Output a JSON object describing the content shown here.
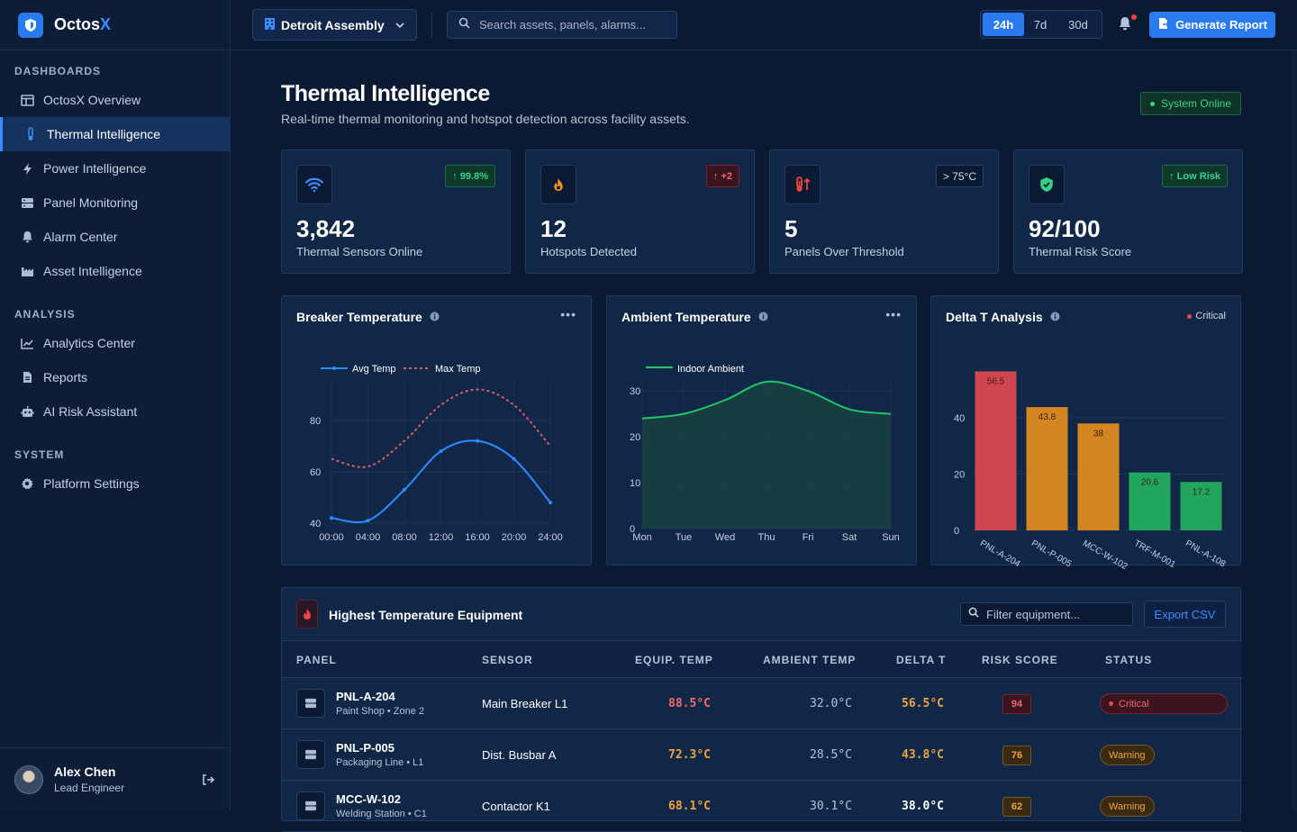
{
  "app": {
    "name_prefix": "Octos",
    "name_suffix": "X"
  },
  "sidebar": {
    "sections": [
      {
        "title": "DASHBOARDS",
        "items": [
          {
            "label": "OctosX Overview",
            "icon": "layout-icon",
            "active": false
          },
          {
            "label": "Thermal Intelligence",
            "icon": "thermometer-icon",
            "active": true
          },
          {
            "label": "Power Intelligence",
            "icon": "bolt-icon",
            "active": false
          },
          {
            "label": "Panel Monitoring",
            "icon": "server-icon",
            "active": false
          },
          {
            "label": "Alarm Center",
            "icon": "bell-icon",
            "active": false
          },
          {
            "label": "Asset Intelligence",
            "icon": "factory-icon",
            "active": false
          }
        ]
      },
      {
        "title": "ANALYSIS",
        "items": [
          {
            "label": "Analytics Center",
            "icon": "line-chart-icon",
            "active": false
          },
          {
            "label": "Reports",
            "icon": "file-icon",
            "active": false
          },
          {
            "label": "AI Risk Assistant",
            "icon": "robot-icon",
            "active": false
          }
        ]
      },
      {
        "title": "SYSTEM",
        "items": [
          {
            "label": "Platform Settings",
            "icon": "gear-icon",
            "active": false
          }
        ]
      }
    ],
    "user": {
      "name": "Alex Chen",
      "role": "Lead Engineer"
    }
  },
  "topbar": {
    "site": "Detroit Assembly",
    "search_placeholder": "Search assets, panels, alarms...",
    "ranges": [
      "24h",
      "7d",
      "30d"
    ],
    "active_range": "24h",
    "generate_label": "Generate Report"
  },
  "page": {
    "title": "Thermal Intelligence",
    "subtitle": "Real-time thermal monitoring and hotspot detection across facility assets.",
    "status": "System Online"
  },
  "kpis": [
    {
      "value": "3,842",
      "label": "Thermal Sensors Online",
      "badge": "99.8%",
      "badge_arrow": "↑",
      "tone": "green",
      "icon": "wifi-icon",
      "icon_color": "#3b8cff"
    },
    {
      "value": "12",
      "label": "Hotspots Detected",
      "badge": "+2",
      "badge_arrow": "↑",
      "tone": "red",
      "icon": "flame-icon",
      "icon_color": "#f5921e"
    },
    {
      "value": "5",
      "label": "Panels Over Threshold",
      "badge": "> 75°C",
      "badge_arrow": "",
      "tone": "gray",
      "icon": "temperature-up-icon",
      "icon_color": "#ef4444"
    },
    {
      "value": "92/100",
      "label": "Thermal Risk Score",
      "badge": "Low Risk",
      "badge_arrow": "↑",
      "tone": "green",
      "icon": "shield-icon",
      "icon_color": "#37d18a"
    }
  ],
  "charts": {
    "breaker": {
      "title": "Breaker Temperature"
    },
    "ambient": {
      "title": "Ambient Temperature"
    },
    "delta": {
      "title": "Delta T Analysis",
      "badge": "Critical"
    }
  },
  "chart_data": [
    {
      "type": "line",
      "title": "Breaker Temperature",
      "x": [
        "00:00",
        "04:00",
        "08:00",
        "12:00",
        "16:00",
        "20:00",
        "24:00"
      ],
      "series": [
        {
          "name": "Avg Temp",
          "values": [
            42,
            41,
            53,
            68,
            72,
            65,
            48
          ],
          "color": "#2b8cff",
          "dashed": false
        },
        {
          "name": "Max Temp",
          "values": [
            65,
            62,
            72,
            86,
            92,
            86,
            70
          ],
          "color": "#e05a63",
          "dashed": true
        }
      ],
      "yticks": [
        40,
        60,
        80
      ],
      "ylim": [
        40,
        95
      ],
      "legend": "top-left"
    },
    {
      "type": "area",
      "title": "Ambient Temperature",
      "x": [
        "Mon",
        "Tue",
        "Wed",
        "Thu",
        "Fri",
        "Sat",
        "Sun"
      ],
      "series": [
        {
          "name": "Indoor Ambient",
          "values": [
            24,
            25,
            28,
            32,
            30,
            26,
            25
          ],
          "color": "#22c56a"
        }
      ],
      "yticks": [
        0,
        10,
        20,
        30
      ],
      "ylim": [
        0,
        32
      ],
      "legend": "top-left"
    },
    {
      "type": "bar",
      "title": "Delta T Analysis",
      "categories": [
        "PNL-A-204",
        "PNL-P-005",
        "MCC-W-102",
        "TRF-M-001",
        "PNL-A-108"
      ],
      "values": [
        56.5,
        43.8,
        38,
        20.6,
        17.2
      ],
      "colors": [
        "#d0464f",
        "#d48623",
        "#d48623",
        "#22a55c",
        "#22a55c"
      ],
      "yticks": [
        0,
        20,
        40
      ],
      "ylim": [
        0,
        56
      ]
    }
  ],
  "table": {
    "title": "Highest Temperature Equipment",
    "filter_placeholder": "Filter equipment...",
    "export_label": "Export CSV",
    "columns": [
      "PANEL",
      "SENSOR",
      "EQUIP. TEMP",
      "AMBIENT TEMP",
      "DELTA T",
      "RISK SCORE",
      "STATUS"
    ],
    "rows": [
      {
        "panel": "PNL-A-204",
        "location": "Paint Shop • Zone 2",
        "sensor": "Main Breaker L1",
        "equip_temp": "88.5°C",
        "ambient_temp": "32.0°C",
        "delta_t": "56.5°C",
        "risk": "94",
        "status": "Critical",
        "tone": "red",
        "delta_tone": "amber"
      },
      {
        "panel": "PNL-P-005",
        "location": "Packaging Line • L1",
        "sensor": "Dist. Busbar A",
        "equip_temp": "72.3°C",
        "ambient_temp": "28.5°C",
        "delta_t": "43.8°C",
        "risk": "76",
        "status": "Warning",
        "tone": "amber",
        "delta_tone": "amber"
      },
      {
        "panel": "MCC-W-102",
        "location": "Welding Station • C1",
        "sensor": "Contactor K1",
        "equip_temp": "68.1°C",
        "ambient_temp": "30.1°C",
        "delta_t": "38.0°C",
        "risk": "62",
        "status": "Warning",
        "tone": "amber",
        "delta_tone": "white"
      }
    ]
  }
}
